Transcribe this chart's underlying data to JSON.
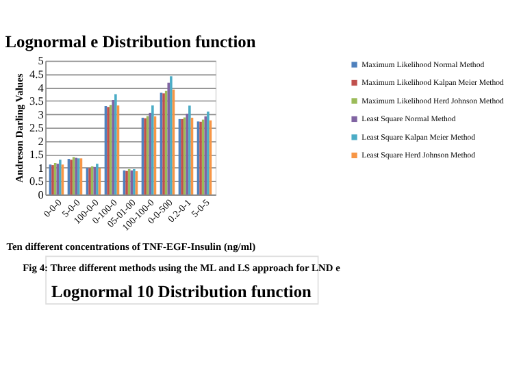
{
  "chart_data": {
    "type": "bar",
    "title": "Lognormal e Distribution function",
    "xlabel": "Ten different concentrations of TNF-EGF-Insulin (ng/ml)",
    "ylabel": "Andreson Darling Values",
    "categories": [
      "0-0-0",
      "5-0-0",
      "100-0-0",
      "0-100-0",
      "05-01-00",
      "100-100-0",
      "0-0-500",
      "0.2-0-1",
      "5-0-5"
    ],
    "series": [
      {
        "name": "Maximum Likelihood Normal Method",
        "color": "#4f81bd",
        "values": [
          1.12,
          1.33,
          1.0,
          3.3,
          0.9,
          2.87,
          3.8,
          2.82,
          2.73
        ]
      },
      {
        "name": "Maximum Likelihood Kalpan Meier Method",
        "color": "#c0504d",
        "values": [
          1.1,
          1.3,
          0.98,
          3.27,
          0.88,
          2.85,
          3.78,
          2.82,
          2.72
        ]
      },
      {
        "name": "Maximum Likelihood Herd Johnson Method",
        "color": "#9bbb59",
        "values": [
          1.18,
          1.4,
          1.05,
          3.35,
          0.95,
          2.93,
          3.87,
          2.88,
          2.8
        ]
      },
      {
        "name": "Least Square Normal Method",
        "color": "#8064a2",
        "values": [
          1.15,
          1.37,
          1.03,
          3.53,
          0.9,
          3.05,
          4.18,
          3.02,
          2.92
        ]
      },
      {
        "name": "Least Square Kalpan Meier Method",
        "color": "#4bacc6",
        "values": [
          1.3,
          1.35,
          1.15,
          3.75,
          0.95,
          3.33,
          4.42,
          3.32,
          3.1
        ]
      },
      {
        "name": "Least Square Herd Johnson Method",
        "color": "#f79646",
        "values": [
          1.12,
          1.35,
          0.98,
          3.33,
          0.87,
          2.92,
          3.92,
          2.87,
          2.77
        ]
      }
    ],
    "ylim": [
      0,
      5
    ],
    "yticks": [
      0,
      0.5,
      1,
      1.5,
      2,
      2.5,
      3,
      3.5,
      4,
      4.5,
      5
    ],
    "grid": "y",
    "legend": "right",
    "annotations": [
      "Fig 4:  Three different methods using the ML and LS approach for LND e",
      "Lognormal 10 Distribution function"
    ]
  }
}
